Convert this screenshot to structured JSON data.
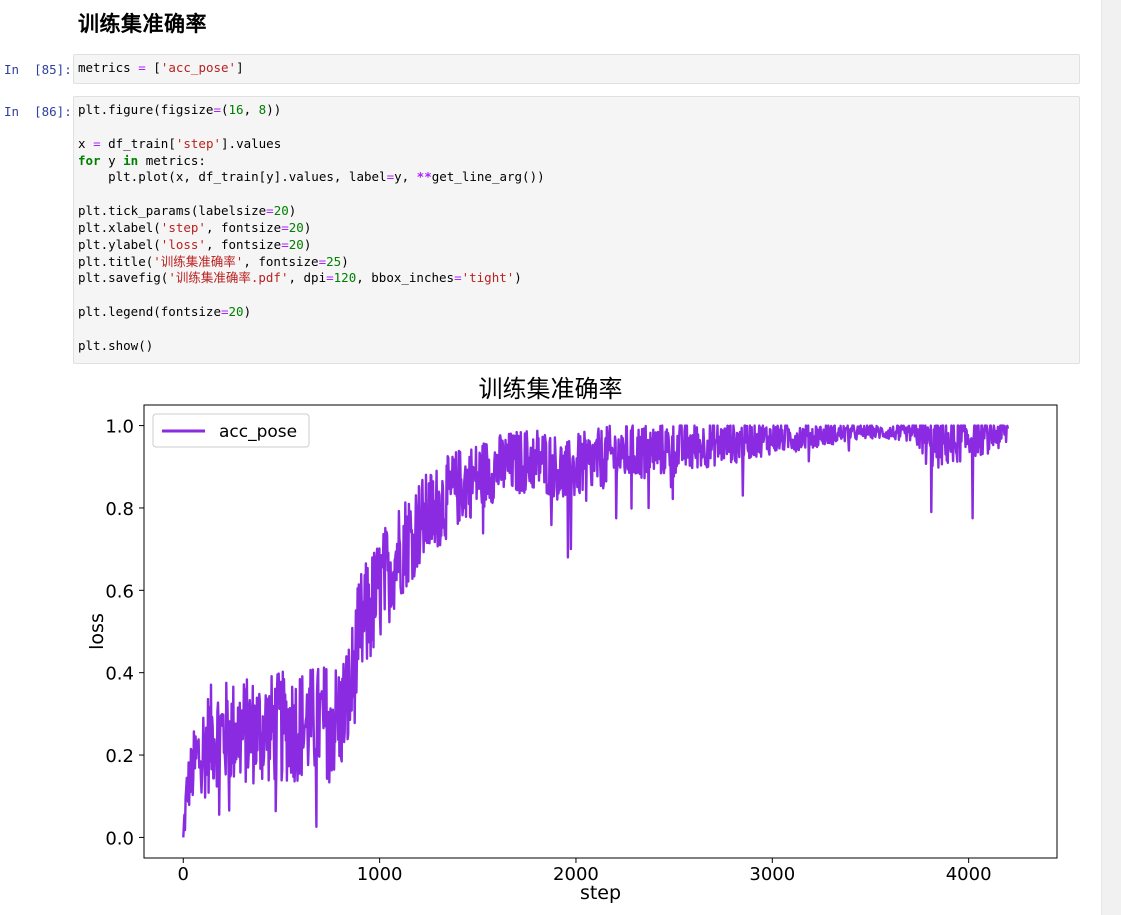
{
  "notebook": {
    "heading": "训练集准确率",
    "cells": [
      {
        "prompt": "In  [85]:",
        "lines": [
          [
            [
              "metrics ",
              ""
            ],
            [
              "=",
              "op"
            ],
            [
              " [",
              ""
            ],
            [
              "'acc_pose'",
              "str"
            ],
            [
              "]",
              ""
            ]
          ]
        ]
      },
      {
        "prompt": "In  [86]:",
        "lines": [
          [
            [
              "plt.figure(figsize",
              ""
            ],
            [
              "=",
              "op"
            ],
            [
              "(",
              ""
            ],
            [
              "16",
              "num"
            ],
            [
              ", ",
              ""
            ],
            [
              "8",
              "num"
            ],
            [
              "))",
              ""
            ]
          ],
          [],
          [
            [
              "x ",
              ""
            ],
            [
              "=",
              "op"
            ],
            [
              " df_train[",
              ""
            ],
            [
              "'step'",
              "str"
            ],
            [
              "].values",
              ""
            ]
          ],
          [
            [
              "for",
              "kw"
            ],
            [
              " y ",
              ""
            ],
            [
              "in",
              "kw"
            ],
            [
              " metrics:",
              ""
            ]
          ],
          [
            [
              "    plt.plot(x, df_train[y].values, label",
              ""
            ],
            [
              "=",
              "op"
            ],
            [
              "y, ",
              ""
            ],
            [
              "**",
              "opb"
            ],
            [
              "get_line_arg())",
              ""
            ]
          ],
          [],
          [
            [
              "plt.tick_params(labelsize",
              ""
            ],
            [
              "=",
              "op"
            ],
            [
              "20",
              "num"
            ],
            [
              ")",
              ""
            ]
          ],
          [
            [
              "plt.xlabel(",
              ""
            ],
            [
              "'step'",
              "str"
            ],
            [
              ", fontsize",
              ""
            ],
            [
              "=",
              "op"
            ],
            [
              "20",
              "num"
            ],
            [
              ")",
              ""
            ]
          ],
          [
            [
              "plt.ylabel(",
              ""
            ],
            [
              "'loss'",
              "str"
            ],
            [
              ", fontsize",
              ""
            ],
            [
              "=",
              "op"
            ],
            [
              "20",
              "num"
            ],
            [
              ")",
              ""
            ]
          ],
          [
            [
              "plt.title(",
              ""
            ],
            [
              "'训练集准确率'",
              "str"
            ],
            [
              ", fontsize",
              ""
            ],
            [
              "=",
              "op"
            ],
            [
              "25",
              "num"
            ],
            [
              ")",
              ""
            ]
          ],
          [
            [
              "plt.savefig(",
              ""
            ],
            [
              "'训练集准确率.pdf'",
              "str"
            ],
            [
              ", dpi",
              ""
            ],
            [
              "=",
              "op"
            ],
            [
              "120",
              "num"
            ],
            [
              ", bbox_inches",
              ""
            ],
            [
              "=",
              "op"
            ],
            [
              "'tight'",
              "str"
            ],
            [
              ")",
              ""
            ]
          ],
          [],
          [
            [
              "plt.legend(fontsize",
              ""
            ],
            [
              "=",
              "op"
            ],
            [
              "20",
              "num"
            ],
            [
              ")",
              ""
            ]
          ],
          [],
          [
            [
              "plt.show()",
              ""
            ]
          ]
        ]
      }
    ]
  },
  "chart_data": {
    "type": "line",
    "title": "训练集准确率",
    "xlabel": "step",
    "ylabel": "loss",
    "xlim": [
      -200,
      4450
    ],
    "ylim": [
      -0.05,
      1.05
    ],
    "xticks": [
      0,
      1000,
      2000,
      3000,
      4000
    ],
    "yticks": [
      0.0,
      0.2,
      0.4,
      0.6,
      0.8,
      1.0
    ],
    "ytick_labels": [
      "0.0",
      "0.2",
      "0.4",
      "0.6",
      "0.8",
      "1.0"
    ],
    "grid": false,
    "legend_position": "top-left",
    "series": [
      {
        "name": "acc_pose",
        "color": "#8a2be2",
        "x_range": [
          0,
          4200
        ],
        "mean_points": [
          [
            0,
            0.0
          ],
          [
            20,
            0.12
          ],
          [
            60,
            0.18
          ],
          [
            150,
            0.25
          ],
          [
            400,
            0.26
          ],
          [
            700,
            0.28
          ],
          [
            800,
            0.29
          ],
          [
            850,
            0.35
          ],
          [
            900,
            0.5
          ],
          [
            1000,
            0.6
          ],
          [
            1100,
            0.7
          ],
          [
            1200,
            0.76
          ],
          [
            1400,
            0.85
          ],
          [
            1600,
            0.9
          ],
          [
            1800,
            0.92
          ],
          [
            1900,
            0.9
          ],
          [
            1950,
            0.88
          ],
          [
            2000,
            0.9
          ],
          [
            2200,
            0.93
          ],
          [
            2600,
            0.95
          ],
          [
            3000,
            0.97
          ],
          [
            3500,
            0.985
          ],
          [
            3750,
            0.98
          ],
          [
            3800,
            0.95
          ],
          [
            4000,
            0.97
          ],
          [
            4200,
            0.985
          ]
        ],
        "noise_points": [
          [
            0,
            0.03
          ],
          [
            100,
            0.08
          ],
          [
            800,
            0.09
          ],
          [
            900,
            0.09
          ],
          [
            1200,
            0.07
          ],
          [
            1600,
            0.05
          ],
          [
            2000,
            0.05
          ],
          [
            2500,
            0.04
          ],
          [
            3000,
            0.025
          ],
          [
            3500,
            0.01
          ],
          [
            3700,
            0.012
          ],
          [
            3800,
            0.04
          ],
          [
            4200,
            0.025
          ]
        ],
        "dips": [
          [
            1960,
            0.68
          ],
          [
            1975,
            0.7
          ],
          [
            2370,
            0.8
          ],
          [
            3810,
            0.79
          ],
          [
            4020,
            0.775
          ],
          [
            2850,
            0.83
          ],
          [
            1420,
            0.82
          ]
        ]
      }
    ]
  }
}
